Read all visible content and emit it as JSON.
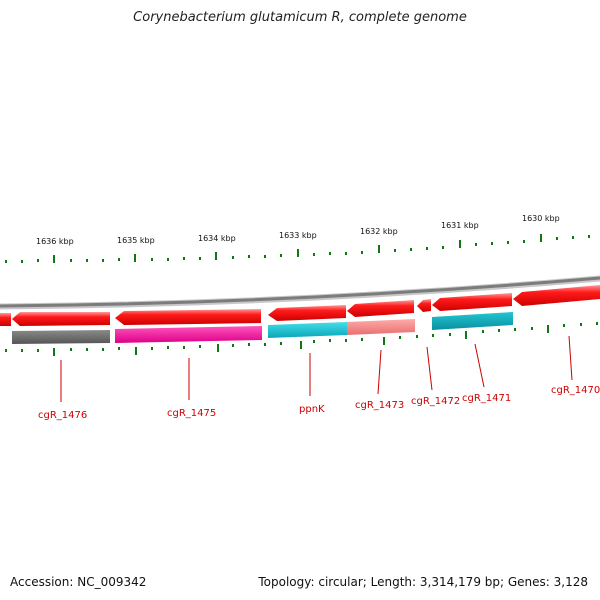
{
  "title": "Corynebacterium glutamicum R, complete genome",
  "accession": "Accession: NC_009342",
  "summary": "Topology: circular; Length: 3,314,179 bp; Genes: 3,128",
  "colors": {
    "backbone": "#888888",
    "forward_gene": "#ff0000",
    "tick": "#117711",
    "label": "#cc0000",
    "gray": "#6f6f6f",
    "magenta": "#ee1199",
    "cyan": "#11bbcc",
    "salmon": "#f08080",
    "teal": "#119aa8"
  },
  "kbp_labels": [
    "1636 kbp",
    "1635 kbp",
    "1634 kbp",
    "1633 kbp",
    "1632 kbp",
    "1631 kbp",
    "1630 kbp"
  ],
  "gene_labels": [
    "cgR_1476",
    "cgR_1475",
    "ppnK",
    "cgR_1473",
    "cgR_1472",
    "cgR_1471",
    "cgR_1470"
  ]
}
